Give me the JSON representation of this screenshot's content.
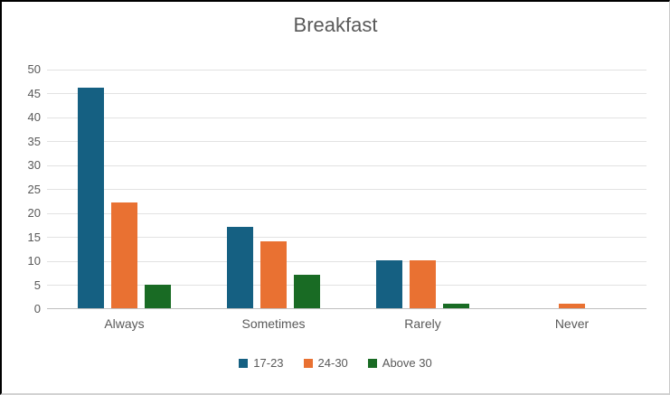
{
  "chart_data": {
    "type": "bar",
    "title": "Breakfast",
    "categories": [
      "Always",
      "Sometimes",
      "Rarely",
      "Never"
    ],
    "series": [
      {
        "name": "17-23",
        "color": "#156082",
        "values": [
          46,
          17,
          10,
          0
        ]
      },
      {
        "name": "24-30",
        "color": "#E97132",
        "values": [
          22,
          14,
          10,
          1
        ]
      },
      {
        "name": "Above 30",
        "color": "#196B24",
        "values": [
          5,
          7,
          1,
          0
        ]
      }
    ],
    "xlabel": "",
    "ylabel": "",
    "ylim": [
      0,
      50
    ],
    "yticks": [
      0,
      5,
      10,
      15,
      20,
      25,
      30,
      35,
      40,
      45,
      50
    ],
    "grid": "horizontal",
    "legend_position": "bottom"
  },
  "colors": {
    "text": "#595959",
    "gridline": "#E2E2E2",
    "axis_line": "#BFBFBF",
    "background": "#FFFFFF"
  }
}
